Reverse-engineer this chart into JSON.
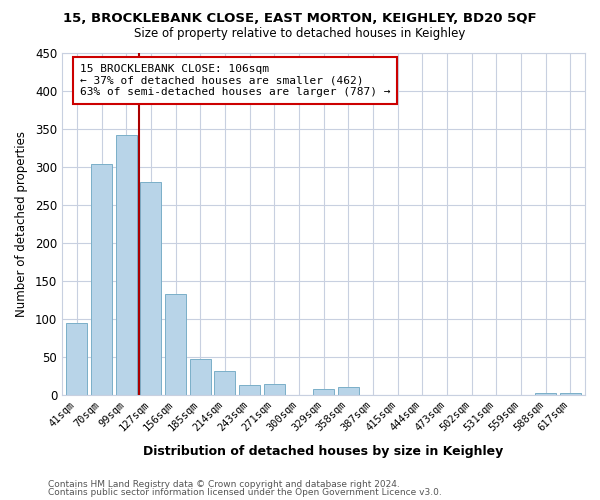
{
  "title": "15, BROCKLEBANK CLOSE, EAST MORTON, KEIGHLEY, BD20 5QF",
  "subtitle": "Size of property relative to detached houses in Keighley",
  "xlabel": "Distribution of detached houses by size in Keighley",
  "ylabel": "Number of detached properties",
  "bar_labels": [
    "41sqm",
    "70sqm",
    "99sqm",
    "127sqm",
    "156sqm",
    "185sqm",
    "214sqm",
    "243sqm",
    "271sqm",
    "300sqm",
    "329sqm",
    "358sqm",
    "387sqm",
    "415sqm",
    "444sqm",
    "473sqm",
    "502sqm",
    "531sqm",
    "559sqm",
    "588sqm",
    "617sqm"
  ],
  "bar_values": [
    95,
    303,
    342,
    280,
    132,
    47,
    31,
    13,
    15,
    0,
    8,
    10,
    0,
    0,
    0,
    0,
    0,
    0,
    0,
    2,
    2
  ],
  "bar_color": "#b8d4e8",
  "bar_edge_color": "#7aafc8",
  "vline_color": "#aa0000",
  "annotation_text": "15 BROCKLEBANK CLOSE: 106sqm\n← 37% of detached houses are smaller (462)\n63% of semi-detached houses are larger (787) →",
  "annotation_box_edgecolor": "#cc0000",
  "ylim": [
    0,
    450
  ],
  "yticks": [
    0,
    50,
    100,
    150,
    200,
    250,
    300,
    350,
    400,
    450
  ],
  "footer_line1": "Contains HM Land Registry data © Crown copyright and database right 2024.",
  "footer_line2": "Contains public sector information licensed under the Open Government Licence v3.0.",
  "bg_color": "#ffffff",
  "plot_bg_color": "#ffffff",
  "grid_color": "#c8d0e0"
}
